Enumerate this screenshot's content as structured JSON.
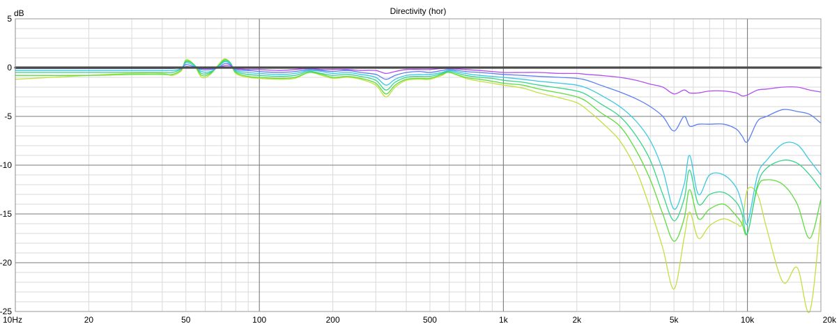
{
  "chart_data": {
    "type": "line",
    "title": "Directivity (hor)",
    "ylabel": "dB",
    "xlabel": "",
    "xscale": "log",
    "xlim": [
      10,
      20000
    ],
    "ylim": [
      -25,
      5
    ],
    "grid": true,
    "x_ticks": [
      {
        "value": 10,
        "label": "10Hz"
      },
      {
        "value": 20,
        "label": "20"
      },
      {
        "value": 50,
        "label": "50"
      },
      {
        "value": 100,
        "label": "100"
      },
      {
        "value": 200,
        "label": "200"
      },
      {
        "value": 500,
        "label": "500"
      },
      {
        "value": 1000,
        "label": "1k"
      },
      {
        "value": 2000,
        "label": "2k"
      },
      {
        "value": 5000,
        "label": "5k"
      },
      {
        "value": 10000,
        "label": "10k"
      },
      {
        "value": 20000,
        "label": "20k"
      }
    ],
    "y_ticks": [
      {
        "value": 5,
        "label": "5"
      },
      {
        "value": 0,
        "label": "0"
      },
      {
        "value": -5,
        "label": "-5"
      },
      {
        "value": -10,
        "label": "-10"
      },
      {
        "value": -15,
        "label": "-15"
      },
      {
        "value": -20,
        "label": "-20"
      },
      {
        "value": -25,
        "label": "-25"
      }
    ],
    "x_shared": [
      10,
      20,
      30,
      40,
      44,
      48,
      50,
      54,
      58,
      63,
      68,
      72,
      76,
      80,
      90,
      100,
      120,
      140,
      160,
      180,
      200,
      230,
      260,
      300,
      330,
      360,
      400,
      450,
      500,
      560,
      600,
      700,
      800,
      900,
      1000,
      1200,
      1400,
      1700,
      2000,
      2200,
      2500,
      3000,
      3500,
      4000,
      4500,
      5000,
      5500,
      5800,
      6300,
      7000,
      8000,
      9000,
      9500,
      10000,
      11000,
      12000,
      14000,
      16000,
      18000,
      20000
    ],
    "series": [
      {
        "color": "#4a4a4a",
        "width": 3.2,
        "values": [
          0,
          0,
          0,
          0,
          0,
          0,
          0,
          0,
          0,
          0,
          0,
          0,
          0,
          0,
          0,
          0,
          0,
          0,
          0,
          0,
          0,
          0,
          0,
          0,
          0,
          0,
          0,
          0,
          0,
          0,
          0,
          0,
          0,
          0,
          0,
          0,
          0,
          0,
          0,
          0,
          0,
          0,
          0,
          0,
          0,
          0,
          0,
          0,
          0,
          0,
          0,
          0,
          0,
          0,
          0,
          0,
          0,
          0,
          0,
          0
        ]
      },
      {
        "color": "#b24ef0",
        "width": 1.3,
        "values": [
          0,
          0,
          0,
          0,
          0,
          -0.1,
          0.1,
          0,
          -0.1,
          -0.1,
          0,
          0.2,
          0.2,
          -0.1,
          -0.2,
          -0.2,
          -0.3,
          -0.2,
          -0.1,
          -0.2,
          -0.2,
          -0.2,
          -0.3,
          -0.3,
          -0.6,
          -0.4,
          -0.2,
          -0.2,
          -0.2,
          -0.1,
          -0.1,
          -0.2,
          -0.3,
          -0.4,
          -0.5,
          -0.5,
          -0.5,
          -0.6,
          -0.6,
          -0.7,
          -0.8,
          -1.0,
          -1.3,
          -1.7,
          -2.0,
          -2.7,
          -2.3,
          -2.6,
          -2.6,
          -2.4,
          -2.4,
          -2.6,
          -2.9,
          -2.8,
          -2.3,
          -2.2,
          -2.0,
          -2.0,
          -2.3,
          -2.5
        ]
      },
      {
        "color": "#5b7ff0",
        "width": 1.3,
        "values": [
          -0.1,
          -0.1,
          -0.1,
          -0.1,
          -0.1,
          0,
          0.3,
          0.1,
          -0.2,
          -0.2,
          0,
          0.4,
          0.3,
          -0.2,
          -0.3,
          -0.4,
          -0.5,
          -0.4,
          -0.2,
          -0.3,
          -0.4,
          -0.3,
          -0.5,
          -0.7,
          -1.2,
          -0.8,
          -0.5,
          -0.4,
          -0.5,
          -0.3,
          -0.2,
          -0.4,
          -0.5,
          -0.6,
          -0.7,
          -0.8,
          -0.9,
          -1.0,
          -1.1,
          -1.3,
          -1.8,
          -2.5,
          -3.2,
          -4.0,
          -5.0,
          -6.5,
          -5.0,
          -6.0,
          -5.8,
          -5.8,
          -5.8,
          -6.3,
          -7.0,
          -7.6,
          -5.5,
          -5.0,
          -4.3,
          -4.5,
          -4.8,
          -5.7
        ]
      },
      {
        "color": "#3bc8e0",
        "width": 1.3,
        "values": [
          -0.3,
          -0.3,
          -0.3,
          -0.3,
          -0.3,
          -0.1,
          0.5,
          0.2,
          -0.4,
          -0.4,
          0.1,
          0.6,
          0.4,
          -0.3,
          -0.5,
          -0.6,
          -0.7,
          -0.6,
          -0.3,
          -0.4,
          -0.6,
          -0.5,
          -0.7,
          -1.0,
          -1.8,
          -1.2,
          -0.8,
          -0.7,
          -0.7,
          -0.5,
          -0.3,
          -0.6,
          -0.8,
          -0.9,
          -1.0,
          -1.2,
          -1.4,
          -1.6,
          -1.8,
          -2.1,
          -2.8,
          -4.0,
          -5.5,
          -7.5,
          -10.5,
          -14.5,
          -12.0,
          -9.0,
          -13.0,
          -11.0,
          -11.0,
          -12.3,
          -14.0,
          -16.0,
          -11.0,
          -9.5,
          -7.8,
          -7.9,
          -9.5,
          -11.0
        ]
      },
      {
        "color": "#35d58a",
        "width": 1.3,
        "values": [
          -0.5,
          -0.5,
          -0.5,
          -0.5,
          -0.5,
          -0.1,
          0.6,
          0.3,
          -0.6,
          -0.5,
          0.2,
          0.7,
          0.5,
          -0.4,
          -0.7,
          -0.8,
          -0.9,
          -0.8,
          -0.4,
          -0.6,
          -0.8,
          -0.7,
          -0.9,
          -1.3,
          -2.3,
          -1.5,
          -1.0,
          -0.9,
          -0.9,
          -0.6,
          -0.4,
          -0.8,
          -1.0,
          -1.1,
          -1.3,
          -1.5,
          -1.8,
          -2.1,
          -2.4,
          -2.8,
          -3.7,
          -5.0,
          -7.0,
          -9.5,
          -13.0,
          -15.7,
          -13.5,
          -10.5,
          -14.0,
          -13.0,
          -12.8,
          -13.8,
          -15.0,
          -17.0,
          -12.0,
          -10.3,
          -9.5,
          -9.8,
          -11.0,
          -12.5
        ]
      },
      {
        "color": "#5fdc3c",
        "width": 1.3,
        "values": [
          -0.8,
          -0.8,
          -0.7,
          -0.7,
          -0.7,
          -0.2,
          0.7,
          0.3,
          -0.8,
          -0.6,
          0.2,
          0.8,
          0.5,
          -0.5,
          -0.9,
          -1.0,
          -1.1,
          -1.0,
          -0.5,
          -0.7,
          -1.0,
          -0.9,
          -1.1,
          -1.6,
          -2.7,
          -1.8,
          -1.2,
          -1.1,
          -1.1,
          -0.7,
          -0.5,
          -1.0,
          -1.2,
          -1.4,
          -1.6,
          -1.8,
          -2.2,
          -2.6,
          -3.0,
          -3.5,
          -4.6,
          -6.0,
          -8.5,
          -11.5,
          -15.0,
          -17.8,
          -15.5,
          -12.5,
          -15.5,
          -14.5,
          -14.0,
          -15.2,
          -16.0,
          -17.0,
          -12.3,
          -11.5,
          -12.0,
          -14.0,
          -17.5,
          -13.5
        ]
      },
      {
        "color": "#c2e040",
        "width": 1.3,
        "values": [
          -1.2,
          -0.8,
          -0.6,
          -0.6,
          -0.8,
          -0.3,
          0.8,
          0.3,
          -1.0,
          -0.7,
          0.3,
          0.9,
          0.5,
          -0.6,
          -1.0,
          -1.1,
          -1.2,
          -1.1,
          -0.5,
          -0.8,
          -1.1,
          -1.0,
          -1.2,
          -1.8,
          -3.0,
          -2.0,
          -1.3,
          -1.2,
          -1.2,
          -0.8,
          -0.5,
          -1.1,
          -1.4,
          -1.6,
          -1.8,
          -2.1,
          -2.6,
          -3.1,
          -3.6,
          -4.3,
          -5.5,
          -7.5,
          -10.5,
          -14.5,
          -18.5,
          -22.7,
          -17.5,
          -14.8,
          -17.5,
          -16.2,
          -15.5,
          -16.0,
          -16.0,
          -12.5,
          -13.0,
          -16.5,
          -22.0,
          -20.5,
          -25.0,
          -15.0
        ]
      }
    ]
  }
}
